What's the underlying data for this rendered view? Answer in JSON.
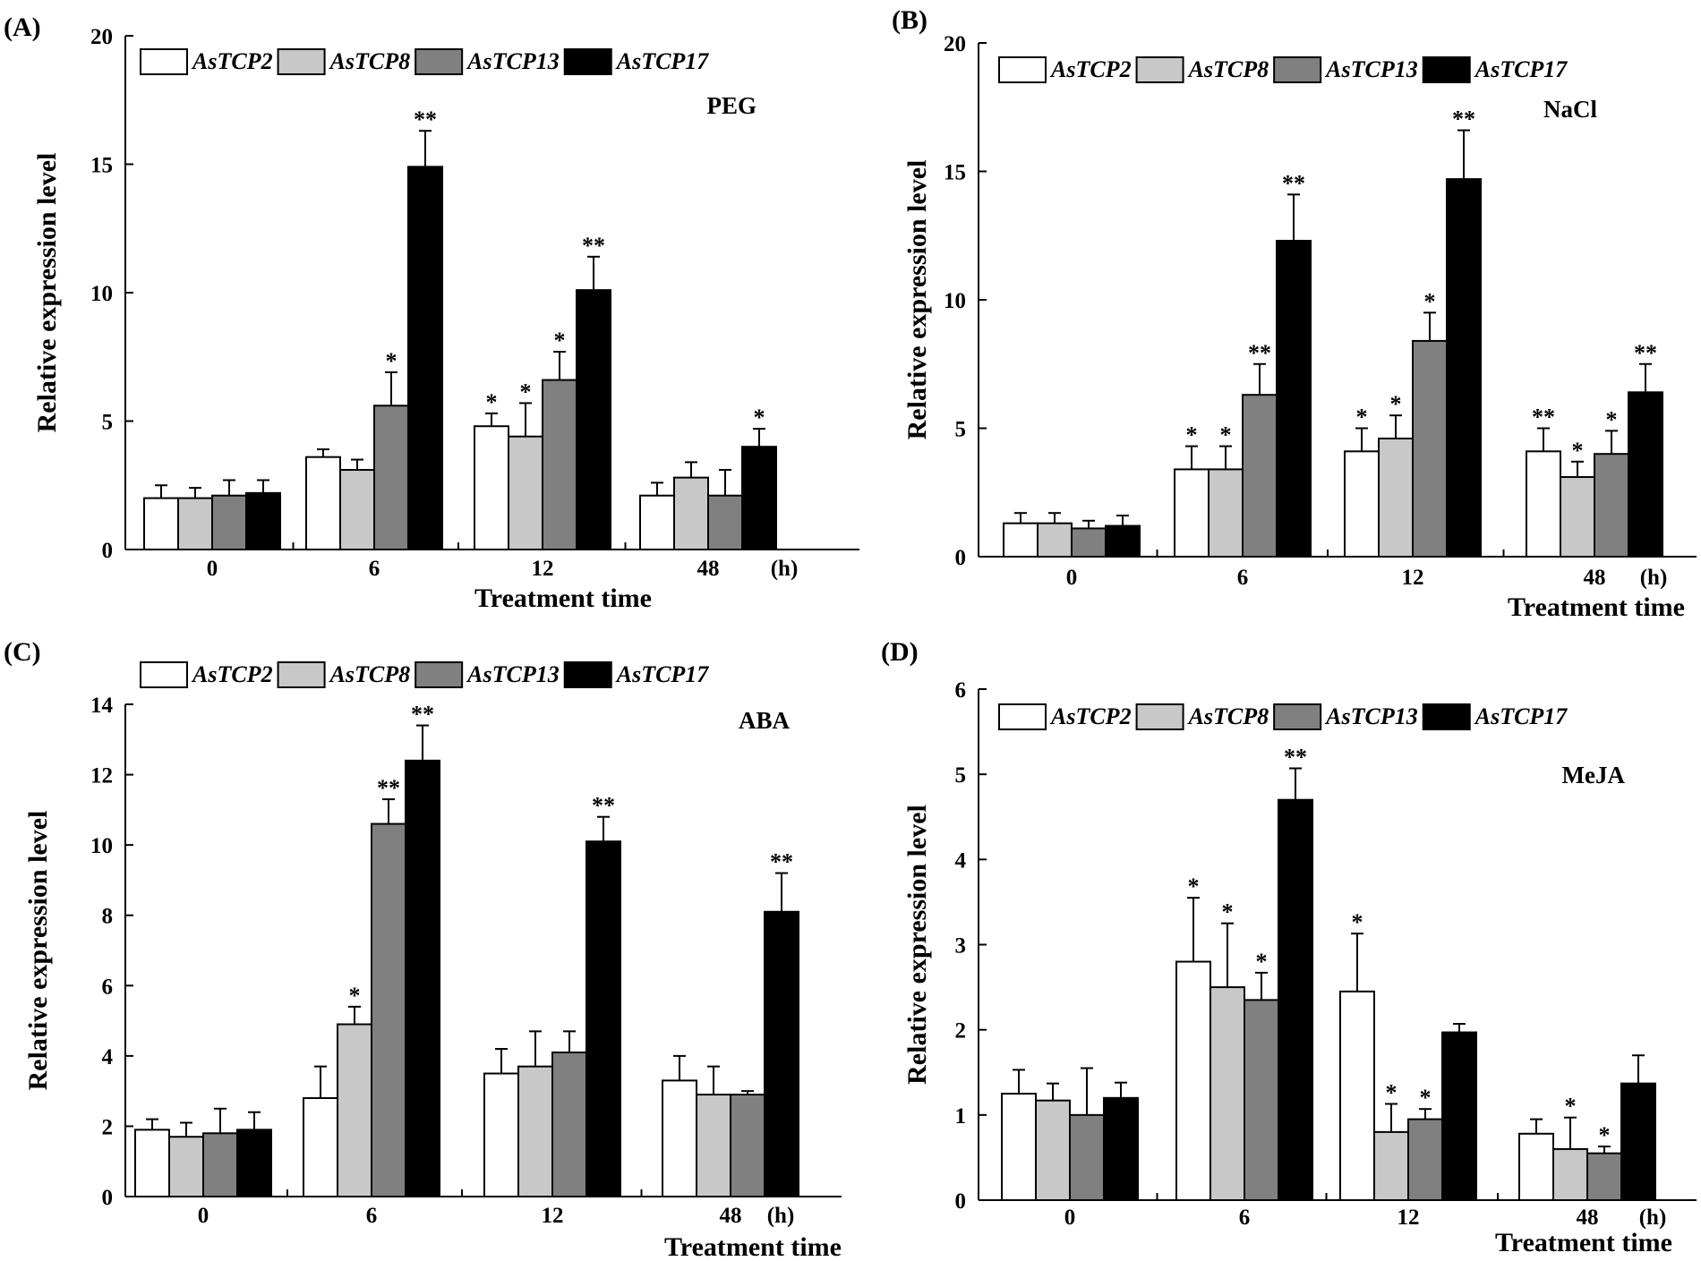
{
  "figure": {
    "series_names": [
      "AsTCP2",
      "AsTCP8",
      "AsTCP13",
      "AsTCP17"
    ],
    "series_colors": [
      "#ffffff",
      "#c8c8c8",
      "#808080",
      "#000000"
    ],
    "xlabel": "Treatment time",
    "x_unit": "(h)",
    "ylabel": "Relative expression level"
  },
  "chart_data": [
    {
      "type": "bar",
      "panel": "(A)",
      "treatment": "PEG",
      "title": "",
      "categories": [
        "0",
        "6",
        "12",
        "48"
      ],
      "xlabel": "Treatment time",
      "ylabel": "Relative expression level",
      "ylim": [
        0,
        20
      ],
      "yticks": [
        0,
        5,
        10,
        15,
        20
      ],
      "series": [
        {
          "name": "AsTCP2",
          "values": [
            2.0,
            3.6,
            4.8,
            2.1
          ],
          "errors": [
            0.5,
            0.3,
            0.5,
            0.5
          ],
          "sig": [
            "",
            "",
            "*",
            ""
          ]
        },
        {
          "name": "AsTCP8",
          "values": [
            2.0,
            3.1,
            4.4,
            2.8
          ],
          "errors": [
            0.4,
            0.4,
            1.3,
            0.6
          ],
          "sig": [
            "",
            "",
            "*",
            ""
          ]
        },
        {
          "name": "AsTCP13",
          "values": [
            2.1,
            5.6,
            6.6,
            2.1
          ],
          "errors": [
            0.6,
            1.3,
            1.1,
            1.0
          ],
          "sig": [
            "",
            "*",
            "*",
            ""
          ]
        },
        {
          "name": "AsTCP17",
          "values": [
            2.2,
            14.9,
            10.1,
            4.0
          ],
          "errors": [
            0.5,
            1.4,
            1.3,
            0.7
          ],
          "sig": [
            "",
            "**",
            "**",
            "*"
          ]
        }
      ]
    },
    {
      "type": "bar",
      "panel": "(B)",
      "treatment": "NaCl",
      "title": "",
      "categories": [
        "0",
        "6",
        "12",
        "48"
      ],
      "xlabel": "Treatment time",
      "ylabel": "Relative expression level",
      "ylim": [
        0,
        20
      ],
      "yticks": [
        0,
        5,
        10,
        15,
        20
      ],
      "series": [
        {
          "name": "AsTCP2",
          "values": [
            1.3,
            3.4,
            4.1,
            4.1
          ],
          "errors": [
            0.4,
            0.9,
            0.9,
            0.9
          ],
          "sig": [
            "",
            "*",
            "*",
            "**"
          ]
        },
        {
          "name": "AsTCP8",
          "values": [
            1.3,
            3.4,
            4.6,
            3.1
          ],
          "errors": [
            0.4,
            0.9,
            0.9,
            0.6
          ],
          "sig": [
            "",
            "*",
            "*",
            "*"
          ]
        },
        {
          "name": "AsTCP13",
          "values": [
            1.1,
            6.3,
            8.4,
            4.0
          ],
          "errors": [
            0.3,
            1.2,
            1.1,
            0.9
          ],
          "sig": [
            "",
            "**",
            "*",
            "*"
          ]
        },
        {
          "name": "AsTCP17",
          "values": [
            1.2,
            12.3,
            14.7,
            6.4
          ],
          "errors": [
            0.4,
            1.8,
            1.9,
            1.1
          ],
          "sig": [
            "",
            "**",
            "**",
            "**"
          ]
        }
      ]
    },
    {
      "type": "bar",
      "panel": "(C)",
      "treatment": "ABA",
      "title": "",
      "categories": [
        "0",
        "6",
        "12",
        "48"
      ],
      "xlabel": "Treatment time",
      "ylabel": "Relative expression level",
      "ylim": [
        0,
        14
      ],
      "yticks": [
        0,
        2,
        4,
        6,
        8,
        10,
        12,
        14
      ],
      "series": [
        {
          "name": "AsTCP2",
          "values": [
            1.9,
            2.8,
            3.5,
            3.3
          ],
          "errors": [
            0.3,
            0.9,
            0.7,
            0.7
          ],
          "sig": [
            "",
            "",
            "",
            ""
          ]
        },
        {
          "name": "AsTCP8",
          "values": [
            1.7,
            4.9,
            3.7,
            2.9
          ],
          "errors": [
            0.4,
            0.5,
            1.0,
            0.8
          ],
          "sig": [
            "",
            "*",
            "",
            ""
          ]
        },
        {
          "name": "AsTCP13",
          "values": [
            1.8,
            10.6,
            4.1,
            2.9
          ],
          "errors": [
            0.7,
            0.7,
            0.6,
            0.1
          ],
          "sig": [
            "",
            "**",
            "",
            ""
          ]
        },
        {
          "name": "AsTCP17",
          "values": [
            1.9,
            12.4,
            10.1,
            8.1
          ],
          "errors": [
            0.5,
            1.0,
            0.7,
            1.1
          ],
          "sig": [
            "",
            "**",
            "**",
            "**"
          ]
        }
      ]
    },
    {
      "type": "bar",
      "panel": "(D)",
      "treatment": "MeJA",
      "title": "",
      "categories": [
        "0",
        "6",
        "12",
        "48"
      ],
      "xlabel": "Treatment time",
      "ylabel": "Relative expression level",
      "ylim": [
        0,
        6
      ],
      "yticks": [
        0,
        1,
        2,
        3,
        4,
        5,
        6
      ],
      "series": [
        {
          "name": "AsTCP2",
          "values": [
            1.25,
            2.8,
            2.45,
            0.78
          ],
          "errors": [
            0.28,
            0.75,
            0.68,
            0.17
          ],
          "sig": [
            "",
            "*",
            "*",
            ""
          ]
        },
        {
          "name": "AsTCP8",
          "values": [
            1.17,
            2.5,
            0.8,
            0.6
          ],
          "errors": [
            0.2,
            0.75,
            0.33,
            0.37
          ],
          "sig": [
            "",
            "*",
            "*",
            "*"
          ]
        },
        {
          "name": "AsTCP13",
          "values": [
            1.0,
            2.35,
            0.95,
            0.55
          ],
          "errors": [
            0.55,
            0.32,
            0.12,
            0.08
          ],
          "sig": [
            "",
            "*",
            "*",
            "*"
          ]
        },
        {
          "name": "AsTCP17",
          "values": [
            1.2,
            4.7,
            1.97,
            1.37
          ],
          "errors": [
            0.18,
            0.37,
            0.1,
            0.33
          ],
          "sig": [
            "",
            "**",
            "",
            ""
          ]
        }
      ]
    }
  ]
}
